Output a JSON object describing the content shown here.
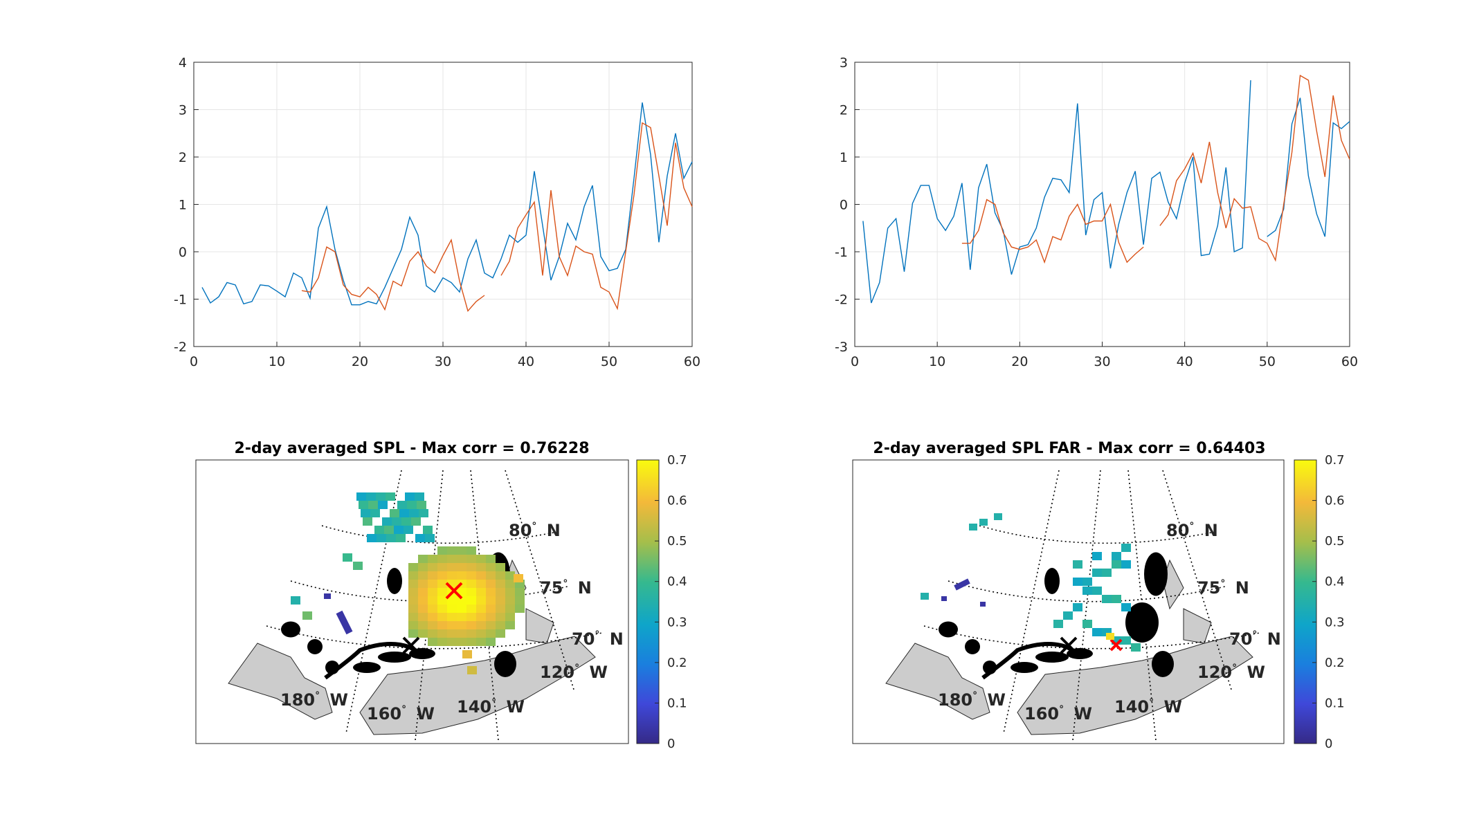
{
  "chart_data": [
    {
      "type": "line",
      "id": "top-left",
      "xlim": [
        0,
        60
      ],
      "ylim": [
        -2,
        4
      ],
      "xticks": [
        "0",
        "10",
        "20",
        "30",
        "40",
        "50",
        "60"
      ],
      "yticks": [
        "-2",
        "-1",
        "0",
        "1",
        "2",
        "3",
        "4"
      ],
      "grid": true,
      "series": [
        {
          "color": "#0072BD",
          "x": [
            1,
            2,
            3,
            4,
            5,
            6,
            7,
            8,
            9,
            10,
            11,
            12,
            13,
            14,
            15,
            16,
            17,
            18,
            19,
            20,
            21,
            22,
            23,
            24,
            25,
            26,
            27,
            28,
            29,
            30,
            31,
            32,
            33,
            34,
            35,
            36,
            37,
            38,
            39,
            40,
            41,
            42,
            43,
            44,
            45,
            46,
            47,
            48,
            49,
            50,
            51,
            52,
            53,
            54,
            55,
            56,
            57,
            58,
            59,
            60
          ],
          "y": [
            -0.75,
            -1.08,
            -0.95,
            -0.65,
            -0.7,
            -1.1,
            -1.05,
            -0.7,
            -0.72,
            -0.83,
            -0.95,
            -0.45,
            -0.55,
            -0.98,
            0.5,
            0.95,
            0.05,
            -0.6,
            -1.12,
            -1.12,
            -1.05,
            -1.1,
            -0.75,
            -0.35,
            0.05,
            0.73,
            0.35,
            -0.72,
            -0.85,
            -0.55,
            -0.65,
            -0.85,
            -0.15,
            0.25,
            -0.45,
            -0.55,
            -0.15,
            0.35,
            0.2,
            0.35,
            1.7,
            0.55,
            -0.6,
            -0.1,
            0.6,
            0.25,
            0.95,
            1.4,
            -0.1,
            -0.4,
            -0.35,
            0.05,
            1.55,
            3.15,
            2.05,
            0.2,
            1.6,
            2.5,
            1.55,
            1.9
          ]
        },
        {
          "color": "#D95319",
          "x": [
            13,
            14,
            15,
            16,
            17,
            18,
            19,
            20,
            21,
            22,
            23,
            24,
            25,
            26,
            27,
            28,
            29,
            30,
            31,
            32,
            33,
            34,
            35,
            null,
            37,
            38,
            39,
            40,
            41,
            42,
            43,
            44,
            45,
            46,
            47,
            48,
            49,
            50,
            51,
            52,
            53,
            54,
            55,
            56,
            57,
            58,
            59,
            60
          ],
          "y": [
            -0.82,
            -0.85,
            -0.55,
            0.1,
            0.0,
            -0.7,
            -0.9,
            -0.95,
            -0.75,
            -0.9,
            -1.22,
            -0.62,
            -0.72,
            -0.2,
            0.0,
            -0.3,
            -0.45,
            -0.08,
            0.25,
            -0.62,
            -1.25,
            -1.05,
            -0.92,
            null,
            -0.5,
            -0.2,
            0.5,
            0.78,
            1.05,
            -0.5,
            1.3,
            -0.1,
            -0.5,
            0.12,
            0.0,
            -0.05,
            -0.75,
            -0.85,
            -1.2,
            0.0,
            1.2,
            2.72,
            2.62,
            1.6,
            0.55,
            2.3,
            1.35,
            0.95
          ]
        }
      ]
    },
    {
      "type": "line",
      "id": "top-right",
      "xlim": [
        0,
        60
      ],
      "ylim": [
        -3,
        3
      ],
      "xticks": [
        "0",
        "10",
        "20",
        "30",
        "40",
        "50",
        "60"
      ],
      "yticks": [
        "-3",
        "-2",
        "-1",
        "0",
        "1",
        "2",
        "3"
      ],
      "grid": true,
      "series": [
        {
          "color": "#0072BD",
          "x": [
            1,
            2,
            3,
            4,
            5,
            6,
            7,
            8,
            9,
            10,
            11,
            12,
            13,
            14,
            15,
            16,
            17,
            18,
            19,
            20,
            21,
            22,
            23,
            24,
            25,
            26,
            27,
            28,
            29,
            30,
            31,
            32,
            33,
            34,
            35,
            36,
            37,
            38,
            39,
            40,
            41,
            42,
            43,
            44,
            45,
            46,
            47,
            48,
            null,
            50,
            51,
            52,
            53,
            54,
            55,
            56,
            57,
            58,
            59,
            60
          ],
          "y": [
            -0.35,
            -2.08,
            -1.65,
            -0.5,
            -0.3,
            -1.42,
            0.02,
            0.4,
            0.4,
            -0.3,
            -0.55,
            -0.25,
            0.45,
            -1.38,
            0.35,
            0.85,
            -0.18,
            -0.55,
            -1.48,
            -0.9,
            -0.85,
            -0.5,
            0.15,
            0.55,
            0.52,
            0.25,
            2.13,
            -0.65,
            0.1,
            0.25,
            -1.35,
            -0.42,
            0.25,
            0.7,
            -0.85,
            0.55,
            0.68,
            0.05,
            -0.3,
            0.45,
            1.0,
            -1.08,
            -1.05,
            -0.45,
            0.78,
            -1.0,
            -0.92,
            2.62,
            null,
            -0.68,
            -0.55,
            -0.1,
            1.7,
            2.25,
            0.6,
            -0.2,
            -0.68,
            1.72,
            1.6,
            1.75
          ]
        },
        {
          "color": "#D95319",
          "x": [
            13,
            14,
            15,
            16,
            17,
            18,
            19,
            20,
            21,
            22,
            23,
            24,
            25,
            26,
            27,
            28,
            29,
            30,
            31,
            32,
            33,
            34,
            35,
            null,
            37,
            38,
            39,
            40,
            41,
            42,
            43,
            44,
            45,
            46,
            47,
            48,
            49,
            50,
            51,
            52,
            53,
            54,
            55,
            56,
            57,
            58,
            59,
            60
          ],
          "y": [
            -0.82,
            -0.82,
            -0.55,
            0.1,
            0.0,
            -0.6,
            -0.9,
            -0.95,
            -0.9,
            -0.75,
            -1.22,
            -0.68,
            -0.75,
            -0.25,
            0.0,
            -0.42,
            -0.35,
            -0.35,
            0.0,
            -0.8,
            -1.22,
            -1.05,
            -0.9,
            null,
            -0.45,
            -0.22,
            0.5,
            0.75,
            1.08,
            0.45,
            1.32,
            0.25,
            -0.5,
            0.12,
            -0.08,
            -0.05,
            -0.72,
            -0.82,
            -1.18,
            0.0,
            1.1,
            2.72,
            2.62,
            1.55,
            0.58,
            2.3,
            1.35,
            0.95
          ]
        }
      ]
    },
    {
      "type": "heatmap",
      "id": "map-left",
      "title": "2-day averaged SPL - Max corr = 0.76228",
      "colorbar": {
        "min": 0,
        "max": 0.7,
        "ticks": [
          "0",
          "0.1",
          "0.2",
          "0.3",
          "0.4",
          "0.5",
          "0.6",
          "0.7"
        ]
      },
      "latitude_labels": [
        "80",
        "75",
        "70"
      ],
      "longitude_labels": [
        "180",
        "160",
        "140",
        "120"
      ],
      "lat_suffix": "N",
      "lon_suffix": "W",
      "max_corr": 0.76228
    },
    {
      "type": "heatmap",
      "id": "map-right",
      "title": "2-day averaged SPL FAR - Max corr = 0.64403",
      "colorbar": {
        "min": 0,
        "max": 0.7,
        "ticks": [
          "0",
          "0.1",
          "0.2",
          "0.3",
          "0.4",
          "0.5",
          "0.6",
          "0.7"
        ]
      },
      "latitude_labels": [
        "80",
        "75",
        "70"
      ],
      "longitude_labels": [
        "180",
        "160",
        "140",
        "120"
      ],
      "lat_suffix": "N",
      "lon_suffix": "W",
      "max_corr": 0.64403
    }
  ],
  "colors": {
    "series1": "#0072BD",
    "series2": "#D95319",
    "land": "#cccccc",
    "coast": "#000000",
    "marker_max": "#ff0000",
    "marker_site": "#000000"
  }
}
